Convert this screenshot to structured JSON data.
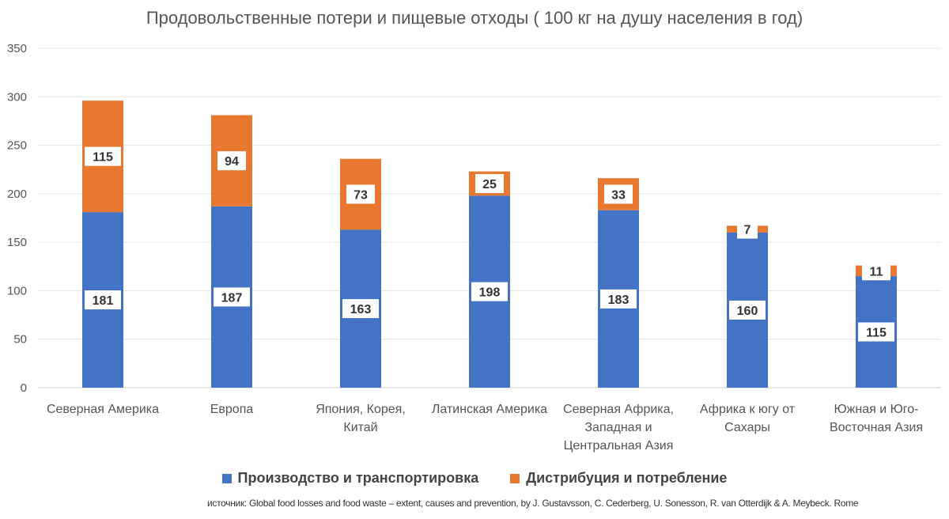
{
  "chart_data": {
    "type": "bar",
    "stacked": true,
    "title": "Продовольственные потери и пищевые отходы ( 100 кг на душу населения в год)",
    "xlabel": "",
    "ylabel": "",
    "ylim": [
      0,
      350
    ],
    "yticks": [
      0,
      50,
      100,
      150,
      200,
      250,
      300,
      350
    ],
    "grid": true,
    "legend_position": "bottom",
    "categories": [
      [
        "Северная Америка"
      ],
      [
        "Европа"
      ],
      [
        "Япония, Корея,",
        "Китай"
      ],
      [
        "Латинская Америка"
      ],
      [
        "Северная Африка,",
        "Западная и",
        "Центральная Азия"
      ],
      [
        "Африка к югу от",
        "Сахары"
      ],
      [
        "Южная и Юго-",
        "Восточная Азия"
      ]
    ],
    "series": [
      {
        "name": "Производство и транспортировка",
        "color": "#4472C4",
        "values": [
          181,
          187,
          163,
          198,
          183,
          160,
          115
        ]
      },
      {
        "name": "Дистрибуция и потребление",
        "color": "#E8782F",
        "values": [
          115,
          94,
          73,
          25,
          33,
          7,
          11
        ]
      }
    ]
  },
  "source": "источник: Global food losses and food waste – extent, causes and prevention, by J. Gustavsson, C. Cederberg, U. Sonesson, R. van Otterdijk & A. Meybeck. Rome"
}
